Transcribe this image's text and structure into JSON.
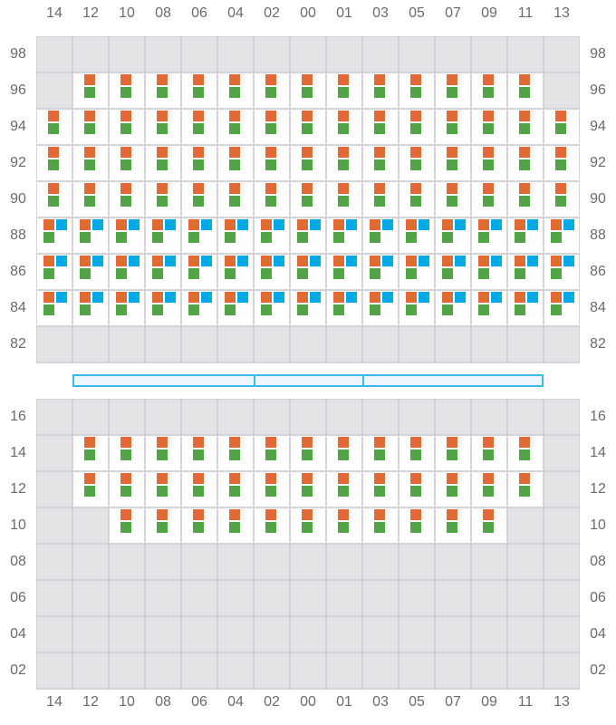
{
  "colors": {
    "empty": "#e4e4e7",
    "slot_a": "#e26b35",
    "slot_b": "#52a447",
    "slot_c": "#04a9e8",
    "bar": "#3bb8ee"
  },
  "columns": [
    "14",
    "12",
    "10",
    "08",
    "06",
    "04",
    "02",
    "00",
    "01",
    "03",
    "05",
    "07",
    "09",
    "11",
    "13"
  ],
  "top_section": {
    "rows": [
      {
        "label": "98",
        "cells": "eeeeeeeeeeeeeee"
      },
      {
        "label": "96",
        "cells": "e2222222222222e"
      },
      {
        "label": "94",
        "cells": "222222222222222"
      },
      {
        "label": "92",
        "cells": "222222222222222"
      },
      {
        "label": "90",
        "cells": "222222222222222"
      },
      {
        "label": "88",
        "cells": "333333333333333"
      },
      {
        "label": "86",
        "cells": "333333333333333"
      },
      {
        "label": "84",
        "cells": "333333333333333"
      },
      {
        "label": "82",
        "cells": "eeeeeeeeeeeeeee"
      }
    ]
  },
  "divider_bar": {
    "segments": 3
  },
  "bottom_section": {
    "rows": [
      {
        "label": "16",
        "cells": "eeeeeeeeeeeeeee"
      },
      {
        "label": "14",
        "cells": "e2222222222222e"
      },
      {
        "label": "12",
        "cells": "e2222222222222e"
      },
      {
        "label": "10",
        "cells": "ee22222222222ee"
      },
      {
        "label": "08",
        "cells": "eeeeeeeeeeeeeee"
      },
      {
        "label": "06",
        "cells": "eeeeeeeeeeeeeee"
      },
      {
        "label": "04",
        "cells": "eeeeeeeeeeeeeee"
      },
      {
        "label": "02",
        "cells": "eeeeeeeeeeeeeee"
      }
    ]
  }
}
